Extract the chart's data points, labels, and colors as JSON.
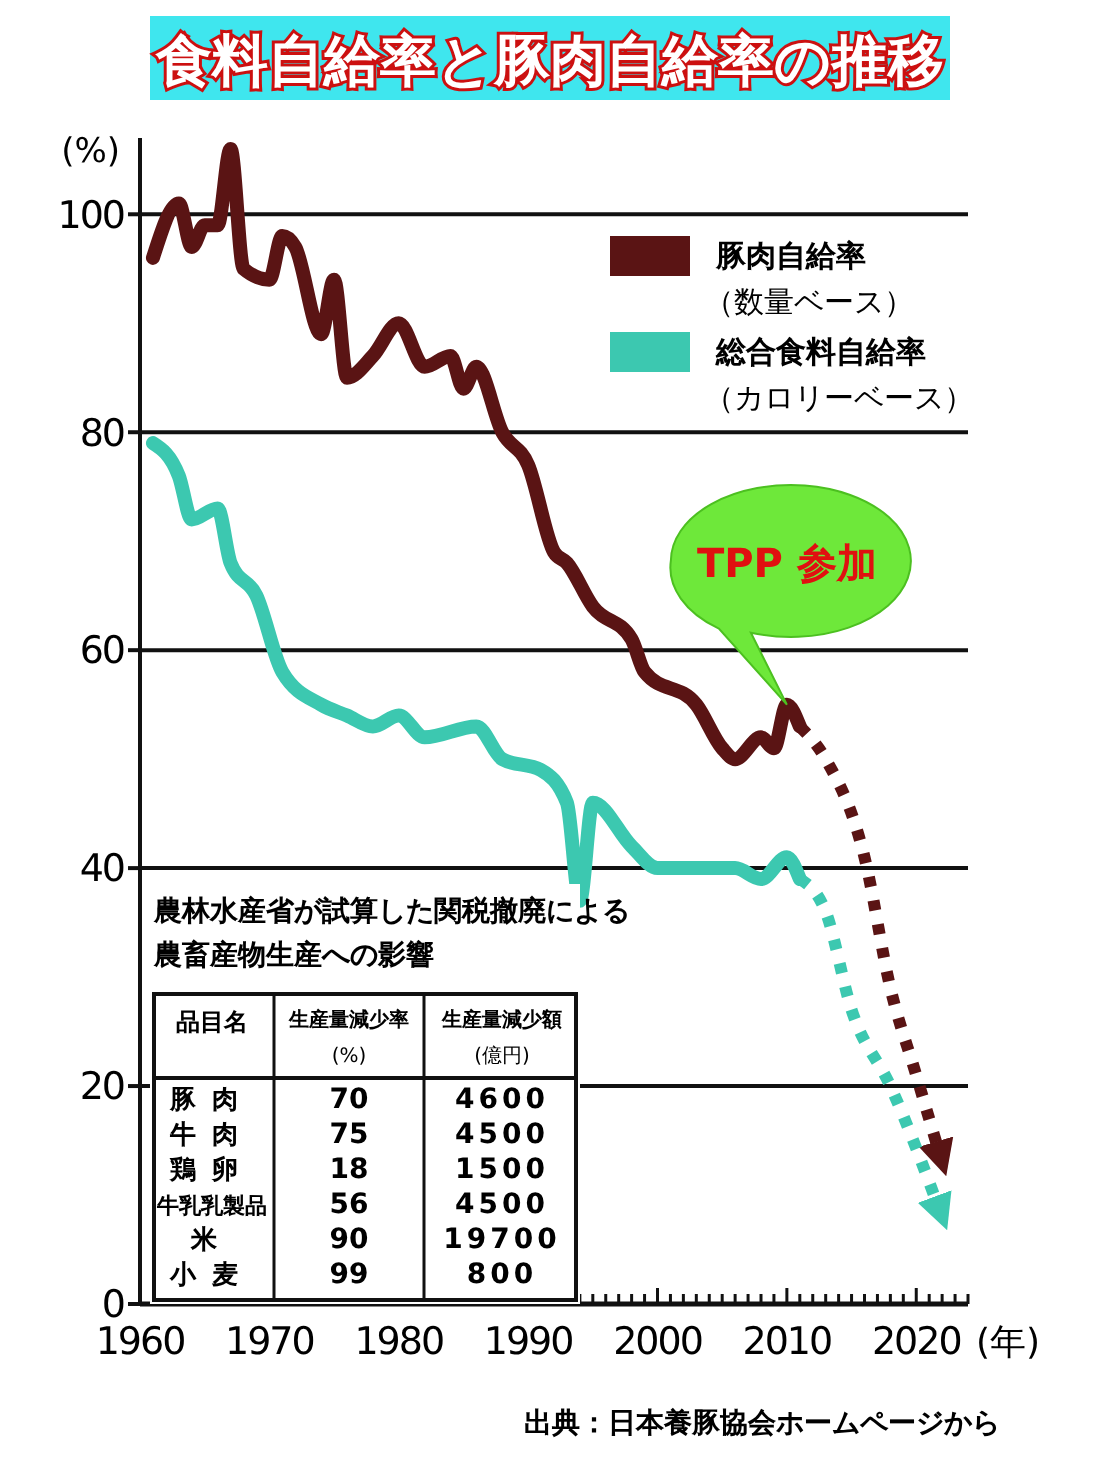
{
  "chart_data": [
    {
      "type": "line",
      "title": "食料自給率と豚肉自給率の推移",
      "ylabel": "(%)",
      "xlabel": "(年)",
      "xlim": [
        1960,
        2024
      ],
      "ylim": [
        0,
        107
      ],
      "xticks": [
        1960,
        {
          "value": 1961,
          "label": null
        },
        {
          "value": 1962,
          "label": null
        },
        {
          "value": 1963,
          "label": null
        },
        {
          "value": 1964,
          "label": null
        },
        {
          "value": 1965,
          "label": null
        },
        {
          "value": 1966,
          "label": null
        },
        {
          "value": 1967,
          "label": null
        },
        {
          "value": 1968,
          "label": null
        },
        {
          "value": 1969,
          "label": null
        },
        1970,
        {
          "value": 1971,
          "label": null
        },
        {
          "value": 1972,
          "label": null
        },
        {
          "value": 1973,
          "label": null
        },
        {
          "value": 1974,
          "label": null
        },
        {
          "value": 1975,
          "label": null
        },
        {
          "value": 1976,
          "label": null
        },
        {
          "value": 1977,
          "label": null
        },
        {
          "value": 1978,
          "label": null
        },
        {
          "value": 1979,
          "label": null
        },
        1980,
        {
          "value": 1981,
          "label": null
        },
        {
          "value": 1982,
          "label": null
        },
        {
          "value": 1983,
          "label": null
        },
        {
          "value": 1984,
          "label": null
        },
        {
          "value": 1985,
          "label": null
        },
        {
          "value": 1986,
          "label": null
        },
        {
          "value": 1987,
          "label": null
        },
        {
          "value": 1988,
          "label": null
        },
        {
          "value": 1989,
          "label": null
        },
        1990,
        {
          "value": 1991,
          "label": null
        },
        {
          "value": 1992,
          "label": null
        },
        {
          "value": 1993,
          "label": null
        },
        {
          "value": 1994,
          "label": null
        },
        {
          "value": 1995,
          "label": null
        },
        {
          "value": 1996,
          "label": null
        },
        {
          "value": 1997,
          "label": null
        },
        {
          "value": 1998,
          "label": null
        },
        {
          "value": 1999,
          "label": null
        },
        2000,
        {
          "value": 2001,
          "label": null
        },
        {
          "value": 2002,
          "label": null
        },
        {
          "value": 2003,
          "label": null
        },
        {
          "value": 2004,
          "label": null
        },
        {
          "value": 2005,
          "label": null
        },
        {
          "value": 2006,
          "label": null
        },
        {
          "value": 2007,
          "label": null
        },
        {
          "value": 2008,
          "label": null
        },
        {
          "value": 2009,
          "label": null
        },
        2010,
        {
          "value": 2011,
          "label": null
        },
        {
          "value": 2012,
          "label": null
        },
        {
          "value": 2013,
          "label": null
        },
        {
          "value": 2014,
          "label": null
        },
        {
          "value": 2015,
          "label": null
        },
        {
          "value": 2016,
          "label": null
        },
        {
          "value": 2017,
          "label": null
        },
        {
          "value": 2018,
          "label": null
        },
        {
          "value": 2019,
          "label": null
        },
        2020,
        {
          "value": 2021,
          "label": null
        },
        {
          "value": 2022,
          "label": null
        },
        {
          "value": 2023,
          "label": null
        },
        {
          "value": 2024,
          "label": null
        }
      ],
      "yticks": [
        0,
        20,
        40,
        60,
        80,
        100
      ],
      "grid": "y",
      "legend": "top right",
      "series": [
        {
          "name": "豚肉自給率（数量ベース）",
          "color": "#5a1414",
          "x": [
            1961,
            1963,
            1964,
            1965,
            1966,
            1967,
            1968,
            1970,
            1971,
            1972,
            1974,
            1975,
            1976,
            1978,
            1980,
            1982,
            1984,
            1985,
            1986,
            1988,
            1990,
            1992,
            1993,
            1995,
            1998,
            1999,
            2003,
            2005,
            2006,
            2008,
            2009,
            2010,
            2011
          ],
          "values": [
            96,
            101,
            97,
            99,
            99,
            106,
            95,
            94,
            98,
            97,
            89,
            94,
            85,
            87,
            90,
            86,
            87,
            84,
            86,
            80,
            77,
            69,
            68,
            64,
            61,
            58,
            55,
            51,
            50,
            52,
            51,
            55,
            53
          ]
        },
        {
          "name": "総合食料自給率（カロリーベース）",
          "color": "#3cc8b0",
          "x": [
            1961,
            1963,
            1964,
            1966,
            1967,
            1969,
            1971,
            1974,
            1976,
            1978,
            1980,
            1982,
            1986,
            1988,
            1991,
            1993,
            1994,
            1995,
            1998,
            2000,
            2006,
            2008,
            2010,
            2011
          ],
          "values": [
            79,
            76,
            72,
            73,
            68,
            65,
            58,
            55,
            54,
            53,
            54,
            52,
            53,
            50,
            49,
            46,
            37,
            46,
            42,
            40,
            40,
            39,
            41,
            39
          ]
        },
        {
          "color": "#5a1414",
          "line_style": "dotted",
          "x": [
            2011,
            2013,
            2016,
            2018,
            2020,
            2022
          ],
          "values": [
            53,
            50,
            41,
            29,
            21,
            13
          ]
        },
        {
          "color": "#3cc8b0",
          "line_style": "dotted",
          "x": [
            2011,
            2013,
            2015,
            2018,
            2022
          ],
          "values": [
            39,
            36,
            27,
            20,
            8
          ]
        }
      ],
      "annotations": [
        {
          "text": "TPP 参加",
          "x": 2010,
          "y": 55
        },
        "出典：日本養豚協会ホームページから"
      ]
    },
    {
      "type": "other",
      "title": "農林水産省が試算した関税撤廃による農畜産物生産への影響",
      "xlabel": "品目名",
      "categories": [
        "豚肉",
        "牛肉",
        "鶏卵",
        "牛乳乳製品",
        "米",
        "小麦"
      ],
      "series": [
        {
          "name": "生産量減少率 (%)",
          "values": [
            70,
            75,
            18,
            56,
            90,
            99
          ]
        },
        {
          "name": "生産量減少額 (億円)",
          "values": [
            4600,
            4500,
            1500,
            4500,
            19700,
            800
          ]
        }
      ],
      "data_labels": true
    }
  ]
}
